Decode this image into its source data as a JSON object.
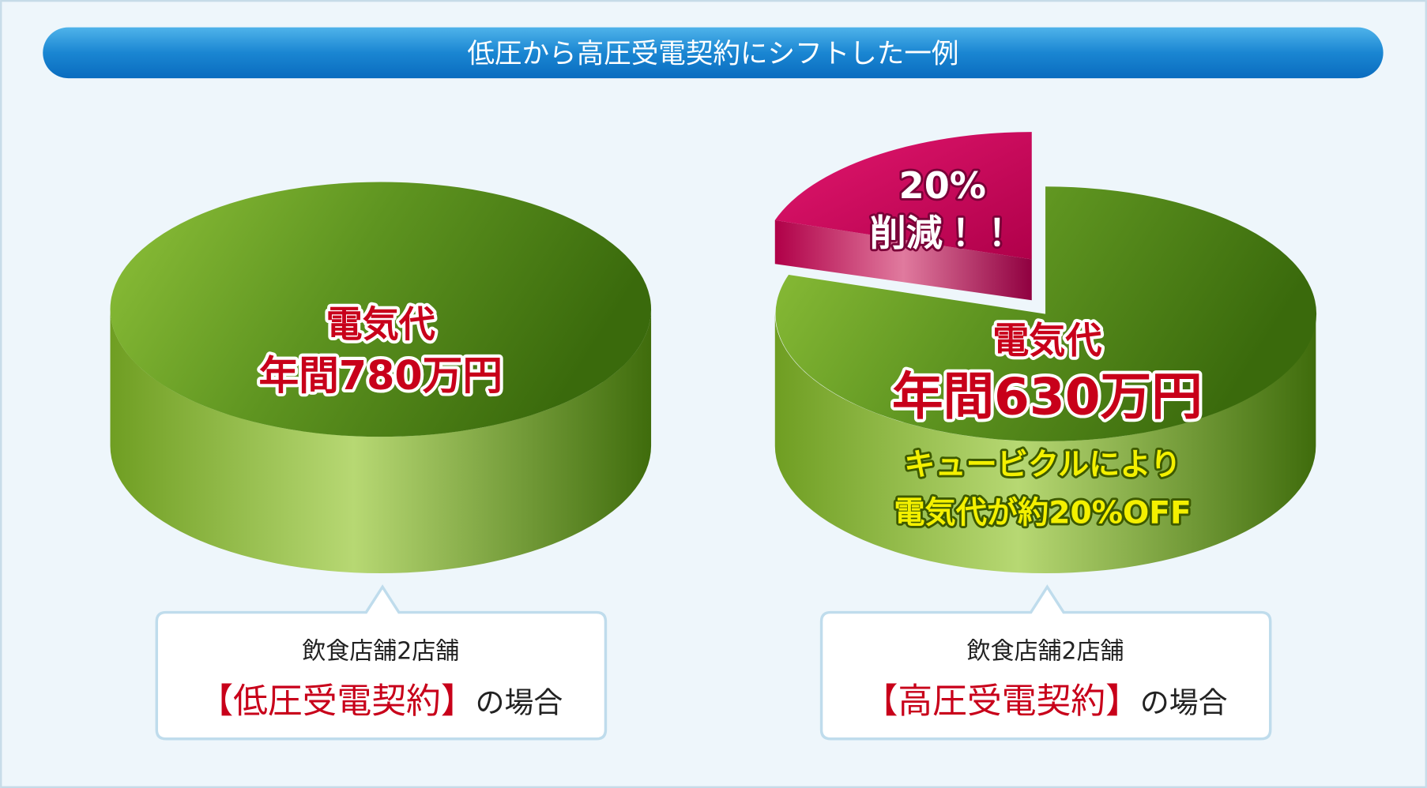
{
  "title": "低圧から高圧受電契約にシフトした一例",
  "left": {
    "pie_label": [
      "電気代",
      "年間780万円"
    ],
    "caption": {
      "line1": "飲食店舗2店舗",
      "contract": "【低圧受電契約】",
      "suffix": "の場合"
    }
  },
  "right": {
    "cut_label": [
      "20%",
      "削減！！"
    ],
    "pie_label": [
      "電気代",
      "年間630万円"
    ],
    "note": [
      "キュービクルにより",
      "電気代が約20%OFF"
    ],
    "caption": {
      "line1": "飲食店舗2店舗",
      "contract": "【高圧受電契約】",
      "suffix": "の場合"
    }
  }
}
